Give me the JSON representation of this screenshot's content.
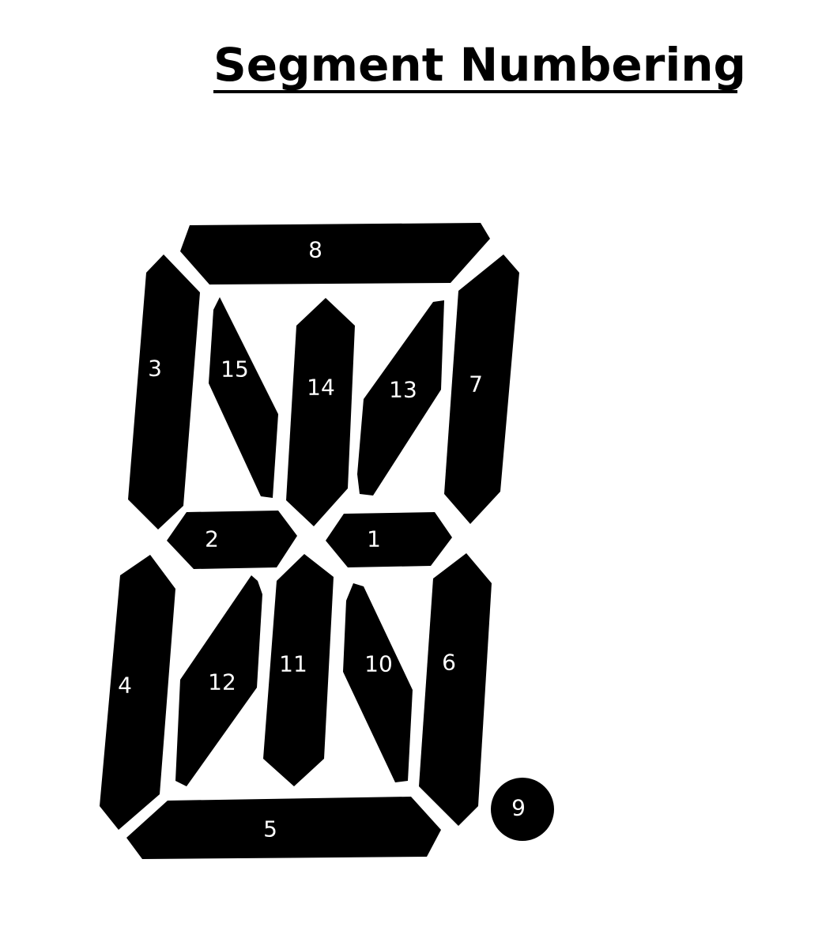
{
  "title": "Segment Numbering ",
  "segment_color": "#000000",
  "label_color": "#ffffff",
  "segments": [
    {
      "id": "1",
      "label": "1"
    },
    {
      "id": "2",
      "label": "2"
    },
    {
      "id": "3",
      "label": "3"
    },
    {
      "id": "4",
      "label": "4"
    },
    {
      "id": "5",
      "label": "5"
    },
    {
      "id": "6",
      "label": "6"
    },
    {
      "id": "7",
      "label": "7"
    },
    {
      "id": "8",
      "label": "8"
    },
    {
      "id": "9",
      "label": "9"
    },
    {
      "id": "10",
      "label": "10"
    },
    {
      "id": "11",
      "label": "11"
    },
    {
      "id": "12",
      "label": "12"
    },
    {
      "id": "13",
      "label": "13"
    },
    {
      "id": "14",
      "label": "14"
    },
    {
      "id": "15",
      "label": "15"
    }
  ]
}
